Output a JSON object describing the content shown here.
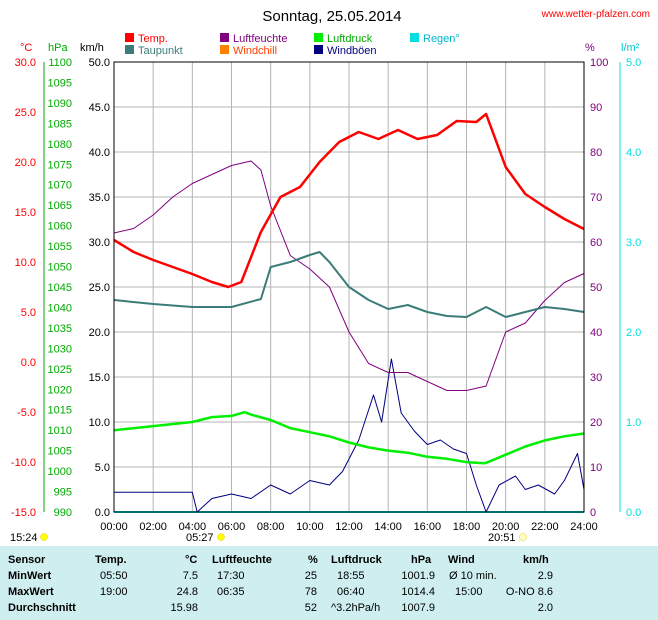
{
  "header": {
    "title": "Sonntag, 25.05.2014",
    "website": "www.wetter-pfalzen.com"
  },
  "axes": {
    "temp_unit": "°C",
    "pressure_unit": "hPa",
    "wind_unit": "km/h",
    "humidity_unit": "%",
    "rain_unit": "l/m²"
  },
  "sun": {
    "sunrise": "05:27",
    "sunset": "20:51",
    "marker_time": "15:24"
  },
  "colors": {
    "temperature": "#ff0000",
    "dewpoint": "#3c7c78",
    "humidity": "#800080",
    "windchill": "#ff8000",
    "pressure": "#00ee00",
    "gusts": "#000080",
    "rain": "#00e0e0",
    "temp_axis": "#ff0000",
    "pressure_axis": "#00aa00",
    "rain_axis": "#00e0e0",
    "humidity_axis": "#800080",
    "sun_marker": "#ffff00",
    "table_bg": "#cfeef0"
  },
  "chart_data": {
    "type": "line",
    "title": "Sonntag, 25.05.2014",
    "x_ticks": [
      "00:00",
      "02:00",
      "04:00",
      "06:00",
      "08:00",
      "10:00",
      "12:00",
      "14:00",
      "16:00",
      "18:00",
      "20:00",
      "22:00",
      "24:00"
    ],
    "xlim": [
      "00:00",
      "24:00"
    ],
    "axes": {
      "temperature": {
        "unit": "°C",
        "range": [
          -15,
          30
        ],
        "ticks": [
          "30.0",
          "25.0",
          "20.0",
          "15.0",
          "10.0",
          "5.0",
          "0.0",
          "-5.0",
          "-10.0",
          "-15.0"
        ]
      },
      "pressure": {
        "unit": "hPa",
        "range": [
          990,
          1100
        ],
        "ticks": [
          "1100",
          "1095",
          "1090",
          "1085",
          "1080",
          "1075",
          "1070",
          "1065",
          "1060",
          "1055",
          "1050",
          "1045",
          "1040",
          "1035",
          "1030",
          "1025",
          "1020",
          "1015",
          "1010",
          "1005",
          "1000",
          "995",
          "990"
        ]
      },
      "wind": {
        "unit": "km/h",
        "range": [
          0,
          50
        ],
        "ticks": [
          "50.0",
          "45.0",
          "40.0",
          "35.0",
          "30.0",
          "25.0",
          "20.0",
          "15.0",
          "10.0",
          "5.0",
          "0.0"
        ]
      },
      "humidity": {
        "unit": "%",
        "range": [
          0,
          100
        ],
        "ticks": [
          "100",
          "90",
          "80",
          "70",
          "60",
          "50",
          "40",
          "30",
          "20",
          "10",
          "0"
        ]
      },
      "rain": {
        "unit": "l/m²",
        "range": [
          0,
          5
        ],
        "ticks": [
          "5.0",
          "4.0",
          "3.0",
          "2.0",
          "1.0",
          "0.0"
        ]
      }
    },
    "legend": [
      "Temp.",
      "Taupunkt",
      "Luftfeuchte",
      "Windchill",
      "Luftdruck",
      "Windböen",
      "Regen°"
    ],
    "series": [
      {
        "name": "Temp.",
        "axis": "temperature",
        "x": [
          "00:00",
          "01:00",
          "02:00",
          "03:00",
          "04:00",
          "05:00",
          "05:50",
          "06:30",
          "07:30",
          "08:30",
          "09:30",
          "10:30",
          "11:30",
          "12:30",
          "13:30",
          "14:30",
          "15:30",
          "16:30",
          "17:30",
          "18:30",
          "19:00",
          "20:00",
          "21:00",
          "22:00",
          "23:00",
          "24:00"
        ],
        "y": [
          12.2,
          11.0,
          10.2,
          9.5,
          8.8,
          8.0,
          7.5,
          8.0,
          13.0,
          16.5,
          17.5,
          20.0,
          22.0,
          23.0,
          22.3,
          23.2,
          22.3,
          22.7,
          24.1,
          24.0,
          24.8,
          19.5,
          16.8,
          15.5,
          14.3,
          13.3
        ]
      },
      {
        "name": "Taupunkt",
        "axis": "temperature",
        "x": [
          "00:00",
          "02:00",
          "04:00",
          "06:00",
          "07:30",
          "08:00",
          "09:00",
          "10:00",
          "10:30",
          "11:00",
          "12:00",
          "13:00",
          "14:00",
          "15:00",
          "16:00",
          "17:00",
          "18:00",
          "19:00",
          "20:00",
          "21:00",
          "22:00",
          "23:00",
          "24:00"
        ],
        "y": [
          6.2,
          5.8,
          5.5,
          5.5,
          6.3,
          9.5,
          10.0,
          10.7,
          11.0,
          10.0,
          7.5,
          6.2,
          5.3,
          5.7,
          5.0,
          4.6,
          4.5,
          5.5,
          4.5,
          5.0,
          5.5,
          5.3,
          5.0
        ]
      },
      {
        "name": "Luftfeuchte",
        "axis": "humidity",
        "x": [
          "00:00",
          "01:00",
          "02:00",
          "03:00",
          "04:00",
          "05:00",
          "06:00",
          "07:00",
          "07:30",
          "08:00",
          "09:00",
          "10:00",
          "11:00",
          "12:00",
          "13:00",
          "14:00",
          "15:00",
          "16:00",
          "17:00",
          "18:00",
          "19:00",
          "20:00",
          "21:00",
          "22:00",
          "23:00",
          "24:00"
        ],
        "y": [
          62,
          63,
          66,
          70,
          73,
          75,
          77,
          78,
          76,
          68,
          57,
          54,
          50,
          40,
          33,
          31,
          31,
          29,
          27,
          27,
          28,
          40,
          42,
          47,
          51,
          53
        ]
      },
      {
        "name": "Luftdruck",
        "axis": "pressure",
        "x": [
          "00:00",
          "02:00",
          "04:00",
          "05:00",
          "06:00",
          "06:40",
          "07:00",
          "08:00",
          "09:00",
          "10:00",
          "11:00",
          "12:00",
          "13:00",
          "14:00",
          "15:00",
          "16:00",
          "17:00",
          "18:00",
          "18:55",
          "19:00",
          "20:00",
          "21:00",
          "22:00",
          "23:00",
          "24:00"
        ],
        "y": [
          1010.0,
          1011.0,
          1012.0,
          1013.2,
          1013.5,
          1014.4,
          1013.8,
          1012.5,
          1010.5,
          1009.5,
          1008.5,
          1007.0,
          1005.8,
          1005.0,
          1004.5,
          1003.5,
          1003.0,
          1002.2,
          1001.9,
          1002.0,
          1004.0,
          1006.0,
          1007.5,
          1008.5,
          1009.2
        ]
      },
      {
        "name": "Windböen",
        "axis": "wind",
        "x": [
          "00:00",
          "02:00",
          "04:00",
          "04:15",
          "05:00",
          "06:00",
          "07:00",
          "08:00",
          "09:00",
          "10:00",
          "11:00",
          "11:40",
          "12:30",
          "13:15",
          "13:40",
          "14:10",
          "14:40",
          "15:20",
          "16:00",
          "16:40",
          "17:20",
          "18:00",
          "18:30",
          "19:00",
          "19:40",
          "20:30",
          "21:00",
          "21:40",
          "22:30",
          "23:00",
          "23:40",
          "24:00"
        ],
        "y": [
          2.2,
          2.2,
          2.2,
          0,
          1.5,
          2.0,
          1.5,
          3.0,
          2.0,
          3.5,
          3.0,
          4.5,
          8.0,
          13.0,
          10.0,
          17.0,
          11.0,
          9.0,
          7.5,
          8.0,
          7.0,
          6.5,
          3.0,
          0,
          3.0,
          4.0,
          2.5,
          3.0,
          2.0,
          3.5,
          6.5,
          2.5
        ]
      },
      {
        "name": "Regen°",
        "axis": "rain",
        "x": [
          "00:00",
          "24:00"
        ],
        "y": [
          0.0,
          0.0
        ]
      }
    ]
  },
  "table": {
    "headers": {
      "sensor": "Sensor",
      "temp": "Temp.",
      "temp_unit": "°C",
      "hum": "Luftfeuchte",
      "hum_unit": "%",
      "press": "Luftdruck",
      "press_unit": "hPa",
      "wind": "Wind",
      "wind_unit": "km/h"
    },
    "rows": [
      {
        "label": "MinWert",
        "t_time": "05:50",
        "t_val": "7.5",
        "h_time": "17:30",
        "h_val": "25",
        "p_time": "18:55",
        "p_val": "1001.9",
        "w_time": "Ø 10 min.",
        "w_val": "2.9"
      },
      {
        "label": "MaxWert",
        "t_time": "19:00",
        "t_val": "24.8",
        "h_time": "06:35",
        "h_val": "78",
        "p_time": "06:40",
        "p_val": "1014.4",
        "w_time": "15:00",
        "w_val": "O-NO 8.6"
      },
      {
        "label": "Durchschnitt",
        "t_time": "",
        "t_val": "15.98",
        "h_time": "",
        "h_val": "52",
        "p_time": "^3.2hPa/h",
        "p_val": "1007.9",
        "w_time": "",
        "w_val": "2.0"
      }
    ]
  }
}
